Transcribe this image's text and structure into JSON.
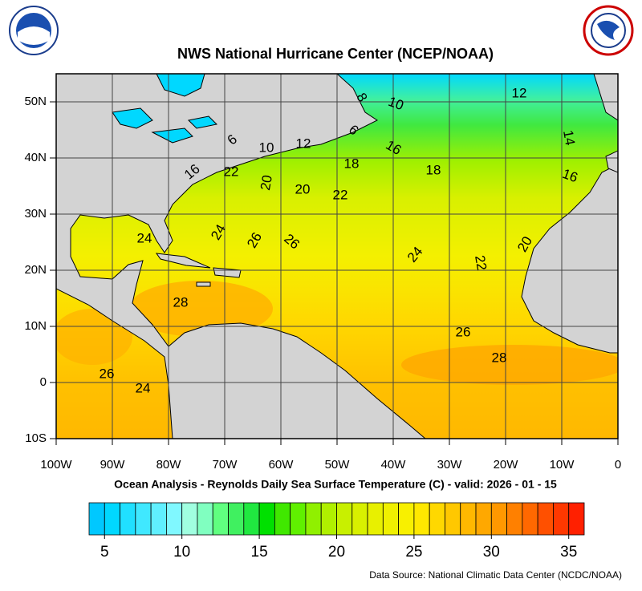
{
  "header": {
    "title": "NWS National Hurricane Center (NCEP/NOAA)"
  },
  "map": {
    "lon_labels": [
      "100W",
      "90W",
      "80W",
      "70W",
      "60W",
      "50W",
      "40W",
      "30W",
      "20W",
      "10W",
      "0"
    ],
    "lat_labels": [
      "50N",
      "40N",
      "30N",
      "20N",
      "10N",
      "0",
      "10S"
    ],
    "contour_labels": [
      8,
      10,
      12,
      6,
      10,
      12,
      6,
      16,
      18,
      18,
      14,
      16,
      16,
      22,
      20,
      20,
      22,
      24,
      24,
      26,
      26,
      24,
      22,
      20,
      28,
      26,
      28,
      26,
      24
    ]
  },
  "caption": "Ocean Analysis - Reynolds Daily Sea Surface Temperature (C) - valid: 2026 - 01 - 15",
  "colorbar": {
    "range": [
      4,
      36
    ],
    "ticks": [
      5,
      10,
      15,
      20,
      25,
      30,
      35
    ],
    "colors": [
      "#00c8ff",
      "#00d8ff",
      "#20e0ff",
      "#40e8ff",
      "#60f0ff",
      "#80f8ff",
      "#a0ffe0",
      "#80ffc0",
      "#60ff80",
      "#40f060",
      "#20e840",
      "#00e000",
      "#40e800",
      "#60f000",
      "#90f000",
      "#b0f000",
      "#c8f000",
      "#d8f000",
      "#e8f000",
      "#f0f000",
      "#f8f000",
      "#ffe800",
      "#ffd800",
      "#ffc800",
      "#ffb800",
      "#ffa800",
      "#ff9800",
      "#ff8000",
      "#ff6800",
      "#ff5000",
      "#ff3800",
      "#ff2000"
    ]
  },
  "source": "Data Source: National Climatic Data Center (NCDC/NOAA)"
}
